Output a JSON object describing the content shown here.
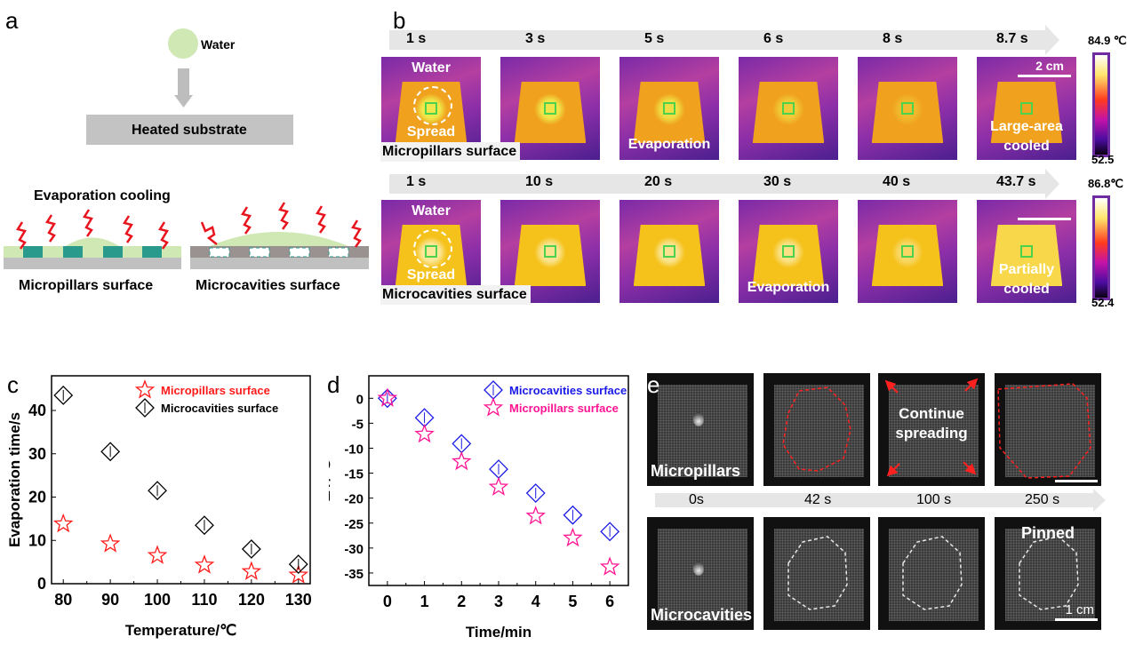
{
  "panel_letters": {
    "a": "a",
    "b": "b",
    "c": "c",
    "d": "d",
    "e": "e"
  },
  "panel_a": {
    "water_label": "Water",
    "substrate_label": "Heated substrate",
    "evaporation_label": "Evaporation cooling",
    "left_caption": "Micropillars surface",
    "right_caption": "Microcavities surface",
    "colors": {
      "water": "#cfe8b4",
      "pillar": "#2a9a8c",
      "substrate": "#c0c0c0",
      "cavity_wall": "#9a9290",
      "wave": "#e8141e",
      "arrow": "#bdbdbd"
    }
  },
  "panel_b": {
    "rows": [
      {
        "surface_label": "Micropillars surface",
        "times": [
          "1 s",
          "3 s",
          "5 s",
          "6 s",
          "8 s",
          "8.7 s"
        ],
        "frame_labels": [
          [
            "Water",
            "Spread"
          ],
          [],
          [
            "Evaporation"
          ],
          [],
          [],
          [
            "Large-area",
            "cooled"
          ]
        ],
        "scale_bar": "2 cm",
        "colorbar_max": "84.9 ℃",
        "colorbar_min": "52.5",
        "cool_spot": [
          0.9,
          0.85,
          0.75,
          0.5,
          0.3,
          0.0
        ]
      },
      {
        "surface_label": "Microcavities surface",
        "times": [
          "1 s",
          "10 s",
          "20 s",
          "30 s",
          "40 s",
          "43.7 s"
        ],
        "frame_labels": [
          [
            "Water",
            "Spread"
          ],
          [],
          [],
          [
            "Evaporation"
          ],
          [],
          [
            "Partially",
            "cooled"
          ]
        ],
        "scale_bar": "",
        "colorbar_max": "86.8℃",
        "colorbar_min": "52.4",
        "cool_spot": [
          0.6,
          0.55,
          0.55,
          0.5,
          0.35,
          0.0
        ]
      }
    ]
  },
  "chart_data": [
    {
      "type": "scatter",
      "panel": "c",
      "title": "",
      "xlabel": "Temperature/℃",
      "ylabel": "Evaporation time/s",
      "x": [
        80,
        90,
        100,
        110,
        120,
        130
      ],
      "xlim": [
        77.5,
        132.5
      ],
      "ylim": [
        0,
        48
      ],
      "xticks": [
        "80",
        "90",
        "100",
        "110",
        "120",
        "130"
      ],
      "yticks": [
        "0",
        "10",
        "20",
        "30",
        "40"
      ],
      "ytick_values": [
        0,
        10,
        20,
        30,
        40
      ],
      "legend": "top-right",
      "series": [
        {
          "name": "Micropillars surface",
          "marker": "star",
          "color": "#ff1a1a",
          "values": [
            13.8,
            9.2,
            6.5,
            4.3,
            2.8,
            2.0
          ]
        },
        {
          "name": "Microcavities surface",
          "marker": "diamond",
          "color": "#000000",
          "values": [
            43.5,
            30.5,
            21.5,
            13.5,
            8.0,
            4.5
          ]
        }
      ]
    },
    {
      "type": "scatter",
      "panel": "d",
      "title": "",
      "xlabel": "Time/min",
      "ylabel": "ΔT/℃",
      "x": [
        0,
        1,
        2,
        3,
        4,
        5,
        6
      ],
      "xlim": [
        -0.5,
        6.5
      ],
      "ylim": [
        -37.5,
        4.5
      ],
      "xticks": [
        "0",
        "1",
        "2",
        "3",
        "4",
        "5",
        "6"
      ],
      "yticks": [
        "0",
        "-5",
        "-10",
        "-15",
        "-20",
        "-25",
        "-30",
        "-35"
      ],
      "ytick_values": [
        0,
        -5,
        -10,
        -15,
        -20,
        -25,
        -30,
        -35
      ],
      "legend": "top-right",
      "series": [
        {
          "name": "Microcavities surface",
          "marker": "diamond",
          "color": "#1a1ae6",
          "values": [
            0,
            -3.9,
            -9.1,
            -14.2,
            -19.0,
            -23.4,
            -26.7
          ]
        },
        {
          "name": "Micropillars surface",
          "marker": "star",
          "color": "#ff1493",
          "values": [
            0,
            -7.2,
            -12.7,
            -17.8,
            -23.6,
            -28.0,
            -33.8
          ]
        }
      ]
    }
  ],
  "panel_e": {
    "top_label": "Micropillars",
    "bottom_label": "Microcavities",
    "times": [
      "0s",
      "42 s",
      "100 s",
      "250 s"
    ],
    "continue_label": [
      "Continue",
      "spreading"
    ],
    "pinned_label": "Pinned",
    "scale_bar": "1 cm",
    "colors": {
      "pillar_outline": "#ff2020",
      "cavity_outline": "#e8e8e8"
    }
  }
}
